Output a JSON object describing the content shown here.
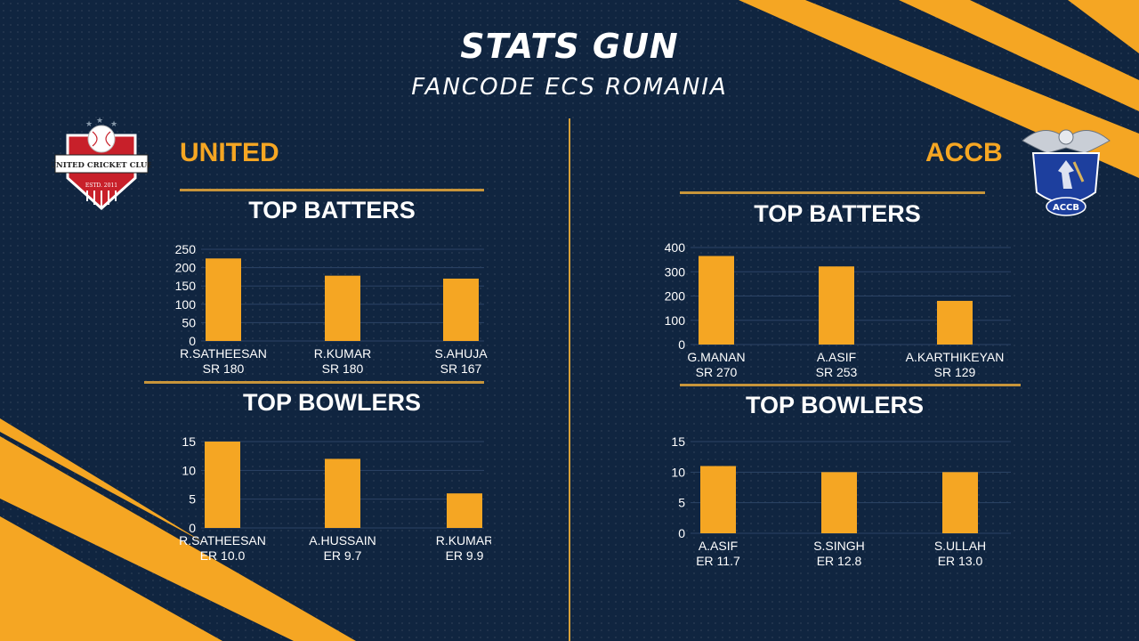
{
  "header": {
    "title": "STATS GUN",
    "subtitle": "FANCODE ECS ROMANIA"
  },
  "colors": {
    "background": "#102540",
    "accent": "#f5a623",
    "rule": "#c8953a",
    "text": "#ffffff"
  },
  "teams": {
    "left": {
      "name": "UNITED",
      "logo_icon": "united-cricket-club-logo-icon",
      "logo_text": "UNITED CRICKET CLUB",
      "logo_estd": "ESTD. 2011"
    },
    "right": {
      "name": "ACCB",
      "logo_icon": "accb-eagle-logo-icon",
      "logo_text": "ACCB"
    }
  },
  "sections": {
    "batters": "TOP BATTERS",
    "bowlers": "TOP BOWLERS"
  },
  "chart_data": [
    {
      "type": "bar",
      "team": "UNITED",
      "title": "TOP BATTERS",
      "categories": [
        "R.SATHEESAN",
        "R.KUMAR",
        "S.AHUJA"
      ],
      "sublabels": [
        "SR 180",
        "SR 180",
        "SR 167"
      ],
      "values": [
        225,
        178,
        170
      ],
      "yticks": [
        0,
        50,
        100,
        150,
        200,
        250
      ],
      "ylim": [
        0,
        250
      ],
      "grid": true
    },
    {
      "type": "bar",
      "team": "UNITED",
      "title": "TOP BOWLERS",
      "categories": [
        "R.SATHEESAN",
        "A.HUSSAIN",
        "R.KUMAR"
      ],
      "sublabels": [
        "ER 10.0",
        "ER 9.7",
        "ER 9.9"
      ],
      "values": [
        15,
        12,
        6
      ],
      "yticks": [
        0,
        5,
        10,
        15
      ],
      "ylim": [
        0,
        15
      ],
      "grid": true
    },
    {
      "type": "bar",
      "team": "ACCB",
      "title": "TOP BATTERS",
      "categories": [
        "G.MANAN",
        "A.ASIF",
        "A.KARTHIKEYAN"
      ],
      "sublabels": [
        "SR 270",
        "SR 253",
        "SR 129"
      ],
      "values": [
        365,
        322,
        180
      ],
      "yticks": [
        0,
        100,
        200,
        300,
        400
      ],
      "ylim": [
        0,
        400
      ],
      "grid": true
    },
    {
      "type": "bar",
      "team": "ACCB",
      "title": "TOP BOWLERS",
      "categories": [
        "A.ASIF",
        "S.SINGH",
        "S.ULLAH"
      ],
      "sublabels": [
        "ER 11.7",
        "ER 12.8",
        "ER 13.0"
      ],
      "values": [
        11,
        10,
        10
      ],
      "yticks": [
        0,
        5,
        10,
        15
      ],
      "ylim": [
        0,
        15
      ],
      "grid": true
    }
  ]
}
